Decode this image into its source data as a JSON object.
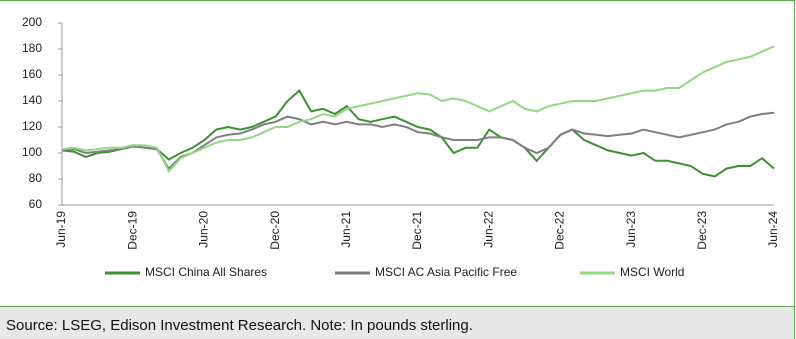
{
  "chart_data": {
    "type": "line",
    "categories": [
      "Jun-19",
      null,
      null,
      null,
      null,
      null,
      "Dec-19",
      null,
      null,
      null,
      null,
      null,
      "Jun-20",
      null,
      null,
      null,
      null,
      null,
      "Dec-20",
      null,
      null,
      null,
      null,
      null,
      "Jun-21",
      null,
      null,
      null,
      null,
      null,
      "Dec-21",
      null,
      null,
      null,
      null,
      null,
      "Jun-22",
      null,
      null,
      null,
      null,
      null,
      "Dec-22",
      null,
      null,
      null,
      null,
      null,
      "Jun-23",
      null,
      null,
      null,
      null,
      null,
      "Dec-23",
      null,
      null,
      null,
      null,
      null,
      "Jun-24"
    ],
    "series": [
      {
        "name": "MSCI China All Shares",
        "color": "#3f8f35",
        "values": [
          102,
          101,
          97,
          100,
          101,
          103,
          106,
          104,
          103,
          95,
          100,
          104,
          110,
          118,
          120,
          118,
          120,
          124,
          128,
          140,
          148,
          132,
          134,
          130,
          136,
          126,
          124,
          126,
          128,
          124,
          120,
          118,
          112,
          100,
          104,
          104,
          118,
          112,
          110,
          104,
          94,
          104,
          114,
          118,
          110,
          106,
          102,
          100,
          98,
          100,
          94,
          94,
          92,
          90,
          84,
          82,
          88,
          90,
          90,
          96,
          88
        ]
      },
      {
        "name": "MSCI AC Asia Pacific Free",
        "color": "#7f7f7f",
        "values": [
          102,
          103,
          100,
          101,
          102,
          103,
          105,
          104,
          103,
          88,
          97,
          100,
          106,
          112,
          114,
          115,
          118,
          122,
          124,
          128,
          126,
          122,
          124,
          122,
          124,
          122,
          122,
          120,
          122,
          120,
          116,
          115,
          112,
          110,
          110,
          110,
          112,
          112,
          110,
          104,
          100,
          104,
          114,
          118,
          115,
          114,
          113,
          114,
          115,
          118,
          116,
          114,
          112,
          114,
          116,
          118,
          122,
          124,
          128,
          130,
          131
        ]
      },
      {
        "name": "MSCI World",
        "color": "#95d585",
        "values": [
          103,
          104,
          102,
          103,
          104,
          104,
          106,
          106,
          104,
          86,
          96,
          100,
          104,
          108,
          110,
          110,
          112,
          116,
          120,
          120,
          124,
          126,
          130,
          128,
          134,
          136,
          138,
          140,
          142,
          144,
          146,
          145,
          140,
          142,
          140,
          136,
          132,
          136,
          140,
          134,
          132,
          136,
          138,
          140,
          140,
          140,
          142,
          144,
          146,
          148,
          148,
          150,
          150,
          156,
          162,
          166,
          170,
          172,
          174,
          178,
          182
        ]
      }
    ],
    "ylim": [
      60,
      200
    ],
    "yticks": [
      60,
      80,
      100,
      120,
      140,
      160,
      180,
      200
    ],
    "grid": false
  },
  "footer": "Source: LSEG, Edison Investment Research. Note: In pounds sterling."
}
